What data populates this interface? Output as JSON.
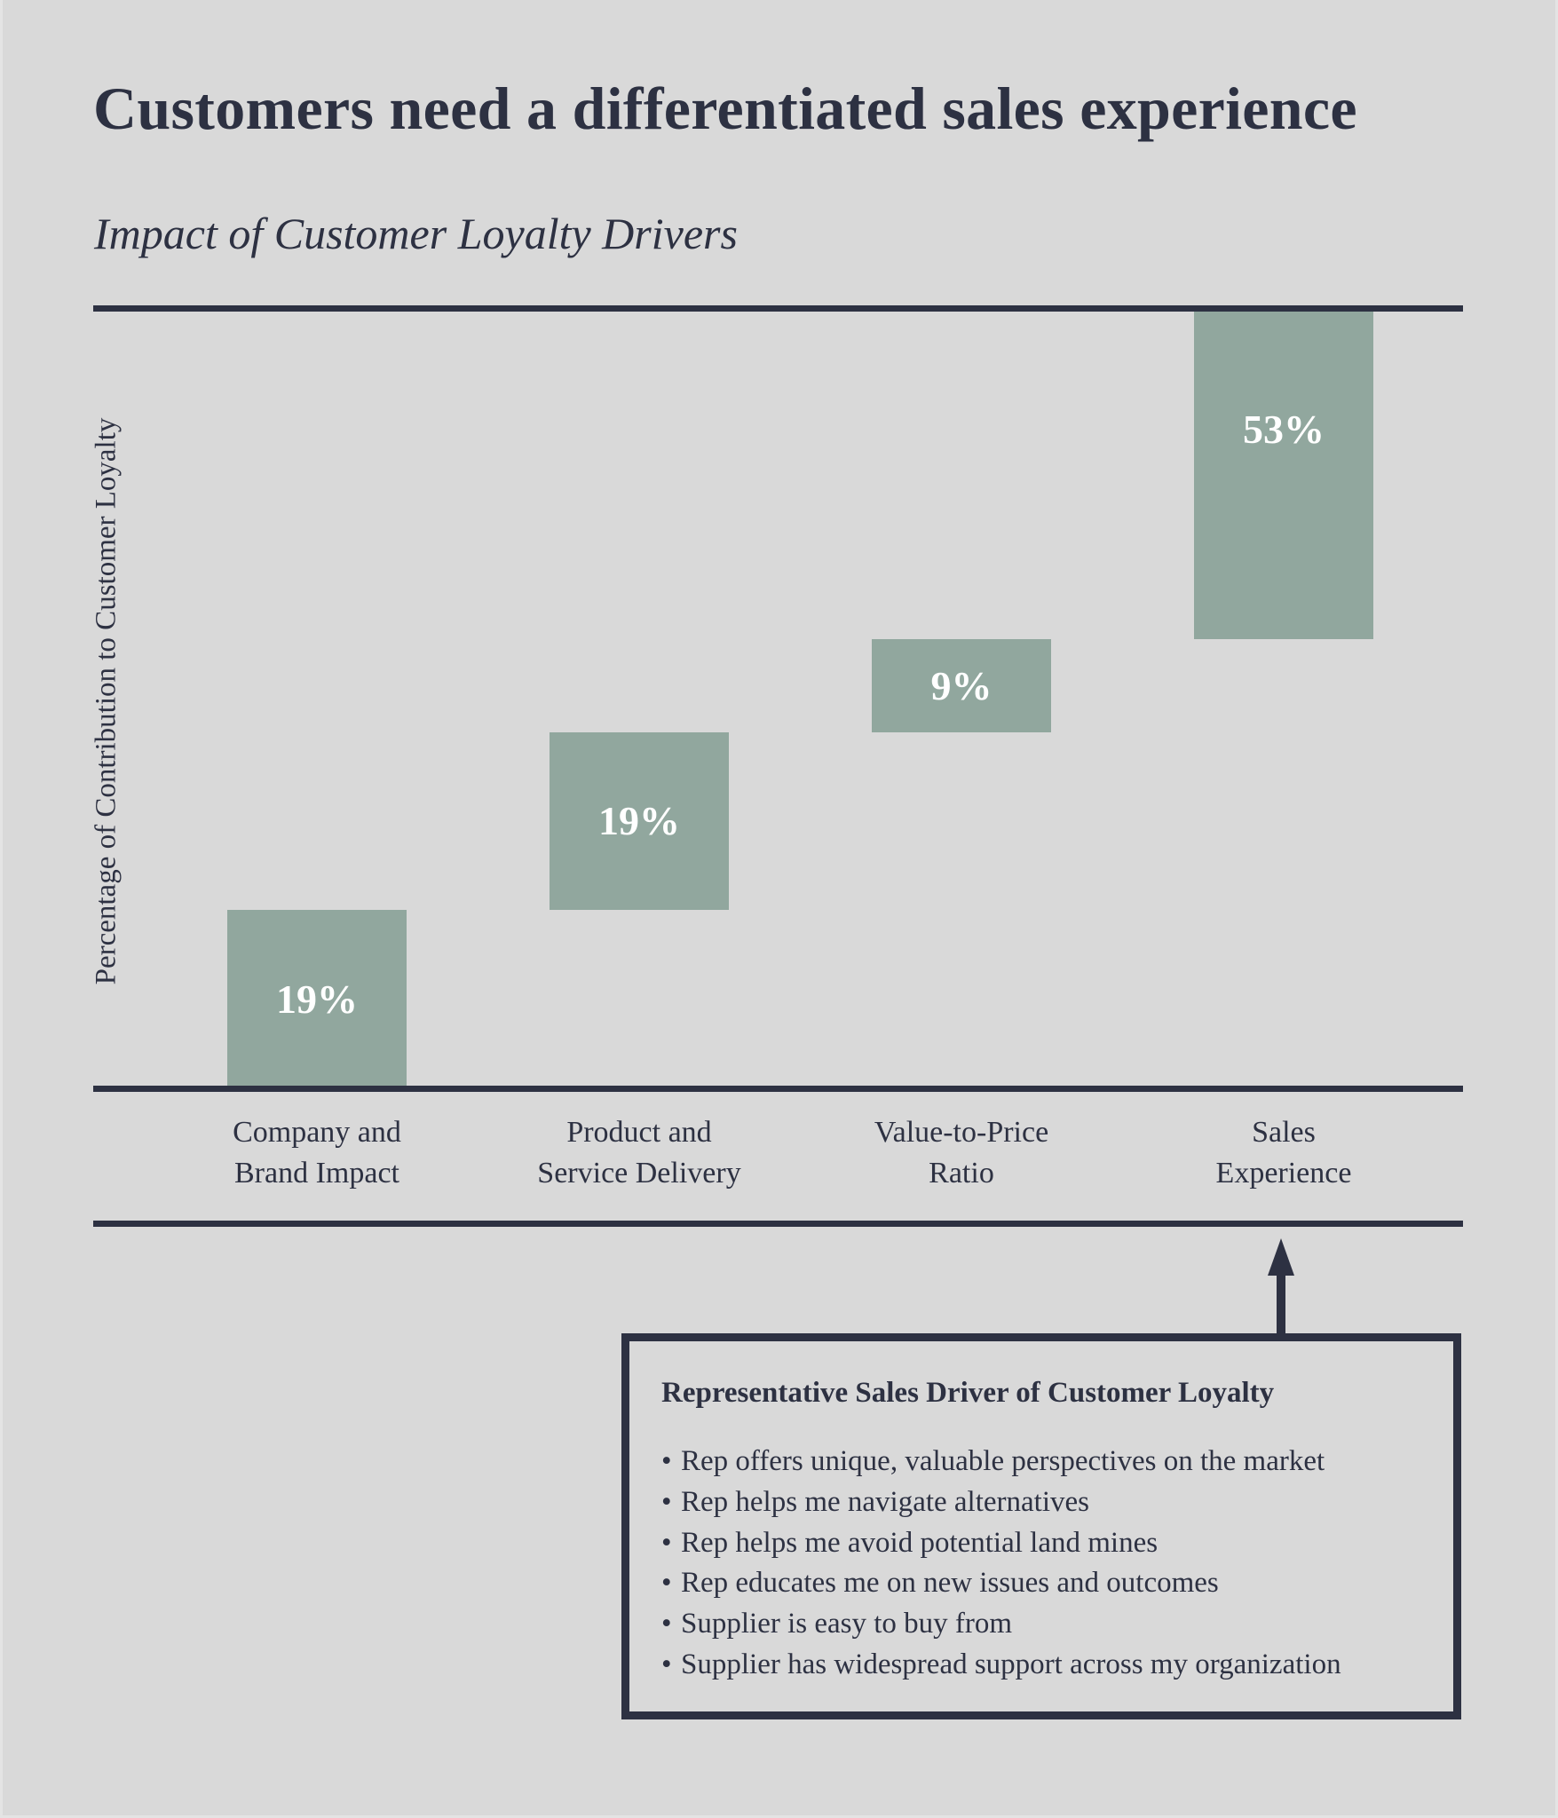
{
  "header": {
    "title": "Customers need a differentiated sales experience",
    "subtitle": "Impact of Customer Loyalty Drivers"
  },
  "colors": {
    "background": "#d9d9d9",
    "bar": "#91a79e",
    "ink": "#2d3142",
    "bar_label": "#ffffff"
  },
  "chart_data": {
    "type": "bar",
    "subtype": "waterfall",
    "title": "Impact of Customer Loyalty Drivers",
    "xlabel": "",
    "ylabel": "Percentage of Contribution to Customer Loyalty",
    "ylim": [
      0,
      100
    ],
    "grid": false,
    "categories": [
      [
        "Company and",
        "Brand Impact"
      ],
      [
        "Product and",
        "Service Delivery"
      ],
      [
        "Value-to-Price",
        "Ratio"
      ],
      [
        "Sales",
        "Experience"
      ]
    ],
    "values": [
      19,
      19,
      9,
      53
    ],
    "data_labels": [
      "19%",
      "19%",
      "9%",
      "53%"
    ],
    "cumulative_start": [
      0,
      19,
      38,
      47
    ],
    "cumulative_end": [
      19,
      38,
      47,
      100
    ]
  },
  "callout": {
    "heading": "Representative Sales Driver of Customer Loyalty",
    "bullet": "•",
    "items": [
      "Rep offers unique, valuable perspectives on the market",
      "Rep helps me navigate alternatives",
      "Rep helps me avoid potential land mines",
      "Rep educates me on new issues and outcomes",
      "Supplier is easy to buy from",
      "Supplier has widespread support across my organization"
    ],
    "points_to": "Sales Experience"
  }
}
